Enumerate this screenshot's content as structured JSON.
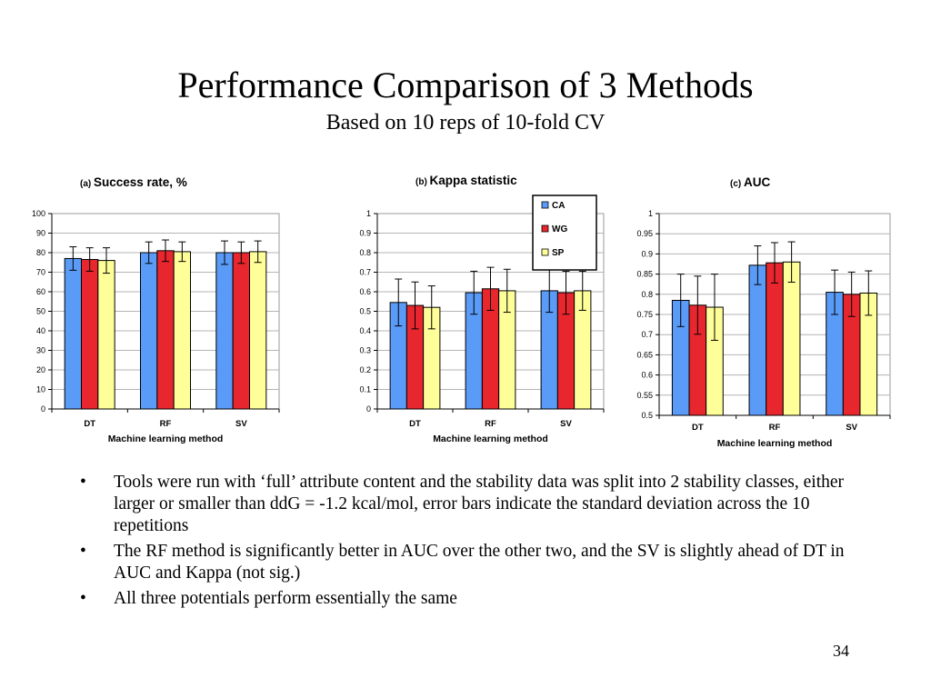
{
  "slide": {
    "title": "Performance Comparison of 3 Methods",
    "subtitle": "Based on 10 reps of 10-fold CV",
    "bullets": [
      "Tools were run with ‘full’ attribute content and the stability data was split into 2 stability classes, either larger or smaller than ddG = -1.2 kcal/mol, error bars indicate the standard deviation across the 10 repetitions",
      "The RF method is significantly better in AUC over the other two, and the SV is slightly ahead of DT in AUC and Kappa (not sig.)",
      "All three potentials perform essentially the same"
    ],
    "bullet_symbol": "•",
    "page_number": "34"
  },
  "colors": {
    "CA": "#5b9bf8",
    "WG": "#e8262e",
    "SP": "#ffff99"
  },
  "chart_data": [
    {
      "type": "bar",
      "label_prefix": "(a)",
      "title": "Success rate, %",
      "xlabel": "Machine learning method",
      "ylabel": "",
      "categories": [
        "DT",
        "RF",
        "SV"
      ],
      "ylim": [
        0,
        100
      ],
      "yticks": [
        "0",
        "10",
        "20",
        "30",
        "40",
        "50",
        "60",
        "70",
        "80",
        "90",
        "100"
      ],
      "grid": true,
      "series": [
        {
          "name": "CA",
          "values": [
            77,
            80,
            80
          ],
          "errors": [
            6,
            5.5,
            6
          ]
        },
        {
          "name": "WG",
          "values": [
            76.5,
            81,
            80
          ],
          "errors": [
            6,
            5.5,
            5.5
          ]
        },
        {
          "name": "SP",
          "values": [
            76,
            80.5,
            80.5
          ],
          "errors": [
            6.5,
            5,
            5.5
          ]
        }
      ]
    },
    {
      "type": "bar",
      "label_prefix": "(b)",
      "title": "Kappa statistic",
      "xlabel": "Machine learning method",
      "ylabel": "",
      "categories": [
        "DT",
        "RF",
        "SV"
      ],
      "ylim": [
        0,
        1
      ],
      "yticks": [
        "0",
        "0.1",
        "0.2",
        "0.3",
        "0.4",
        "0.5",
        "0.6",
        "0.7",
        "0.8",
        "0.9",
        "1"
      ],
      "grid": true,
      "legend": {
        "placement": "top-right",
        "entries": [
          "CA",
          "WG",
          "SP"
        ]
      },
      "series": [
        {
          "name": "CA",
          "values": [
            0.545,
            0.595,
            0.605
          ],
          "errors": [
            0.12,
            0.11,
            0.11
          ]
        },
        {
          "name": "WG",
          "values": [
            0.53,
            0.615,
            0.595
          ],
          "errors": [
            0.12,
            0.11,
            0.11
          ]
        },
        {
          "name": "SP",
          "values": [
            0.52,
            0.605,
            0.605
          ],
          "errors": [
            0.11,
            0.11,
            0.1
          ]
        }
      ]
    },
    {
      "type": "bar",
      "label_prefix": "(c)",
      "title": "AUC",
      "xlabel": "Machine learning method",
      "ylabel": "",
      "categories": [
        "DT",
        "RF",
        "SV"
      ],
      "ylim": [
        0.5,
        1
      ],
      "yticks": [
        "0.5",
        "0.55",
        "0.6",
        "0.65",
        "0.7",
        "0.75",
        "0.8",
        "0.85",
        "0.9",
        "0.95",
        "1"
      ],
      "grid": true,
      "series": [
        {
          "name": "CA",
          "values": [
            0.785,
            0.872,
            0.805
          ],
          "errors": [
            0.065,
            0.048,
            0.055
          ]
        },
        {
          "name": "WG",
          "values": [
            0.773,
            0.878,
            0.8
          ],
          "errors": [
            0.072,
            0.05,
            0.055
          ]
        },
        {
          "name": "SP",
          "values": [
            0.768,
            0.88,
            0.803
          ],
          "errors": [
            0.082,
            0.05,
            0.055
          ]
        }
      ]
    }
  ]
}
